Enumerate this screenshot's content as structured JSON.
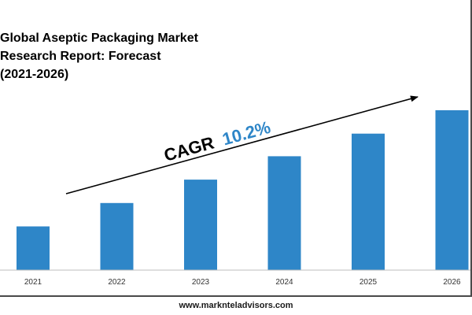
{
  "title_lines": [
    "Global Aseptic Packaging Market",
    "Research Report: Forecast",
    "(2021-2026)"
  ],
  "website": "www.marknteladvisors.com",
  "chart_data": {
    "type": "bar",
    "title": "Global Aseptic Packaging Market Research Report: Forecast (2021-2026)",
    "categories": [
      "2021",
      "2022",
      "2023",
      "2024",
      "2025",
      "2026"
    ],
    "values": [
      56,
      86,
      116,
      146,
      175,
      205
    ],
    "ylim": [
      0,
      210
    ],
    "grid": false,
    "annotation": {
      "prefix": "CAGR",
      "value": "10.2%"
    },
    "bar_color": "#2e86c8",
    "accent_color": "#2e86c8"
  }
}
